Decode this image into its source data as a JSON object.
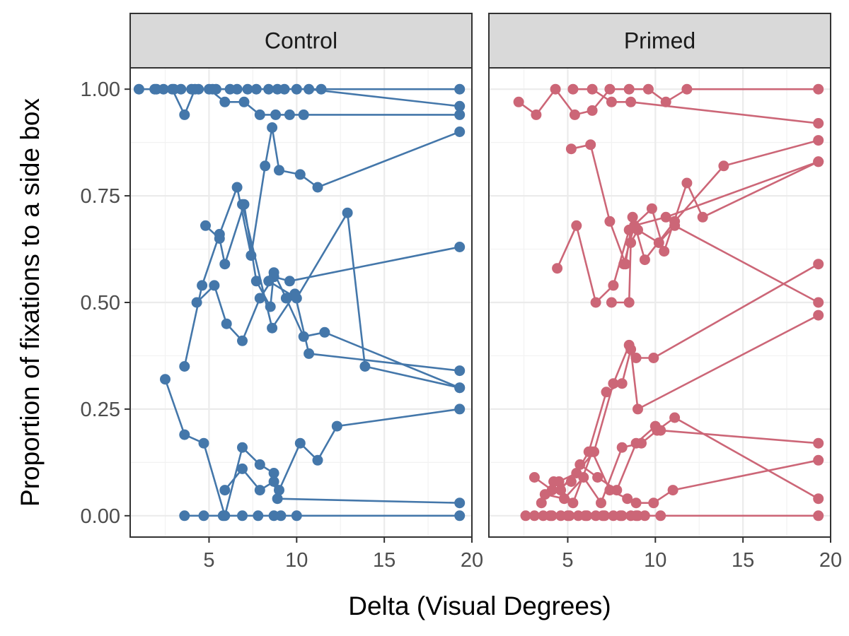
{
  "chart_data": {
    "type": "line",
    "facet_by": "condition",
    "xlabel": "Delta (Visual Degrees)",
    "ylabel": "Proportion of fixations to a side box",
    "xlim": [
      0.5,
      20
    ],
    "ylim": [
      -0.05,
      1.05
    ],
    "x_ticks": [
      5,
      10,
      15,
      20
    ],
    "y_ticks": [
      0,
      0.25,
      0.5,
      0.75,
      1
    ],
    "y_tick_labels": [
      "0.00",
      "0.25",
      "0.50",
      "0.75",
      "1.00"
    ],
    "grid": true,
    "legend": "none",
    "panels": [
      {
        "label": "Control",
        "color": "#4477aa",
        "series": [
          {
            "x": [
              1.0,
              1.9,
              2.4,
              3.4,
              4.4,
              5.4,
              6.6,
              7.7,
              8.9,
              10.0,
              11.4,
              19.3
            ],
            "y": [
              1.0,
              1.0,
              1.0,
              1.0,
              1.0,
              1.0,
              1.0,
              1.0,
              1.0,
              1.0,
              1.0,
              1.0
            ]
          },
          {
            "x": [
              2.0,
              2.9,
              3.6,
              4.2,
              5.0,
              5.9,
              7.0,
              7.9,
              8.8,
              9.6,
              10.4,
              19.3
            ],
            "y": [
              1.0,
              1.0,
              0.94,
              1.0,
              1.0,
              0.97,
              0.97,
              0.94,
              0.94,
              0.94,
              0.94,
              0.94
            ]
          },
          {
            "x": [
              3.0,
              4.0,
              5.2,
              6.2,
              7.2,
              8.4,
              9.3,
              10.7,
              19.3
            ],
            "y": [
              1.0,
              1.0,
              1.0,
              1.0,
              1.0,
              1.0,
              1.0,
              1.0,
              0.96
            ]
          },
          {
            "x": [
              3.6,
              4.6,
              5.6,
              6.6,
              7.4,
              8.2,
              8.6,
              9.0,
              10.2,
              11.2,
              19.3
            ],
            "y": [
              0.35,
              0.54,
              0.66,
              0.77,
              0.61,
              0.82,
              0.91,
              0.81,
              0.8,
              0.77,
              0.9
            ]
          },
          {
            "x": [
              4.3,
              5.3,
              6.0,
              6.9,
              7.9,
              8.7,
              9.6,
              19.3
            ],
            "y": [
              0.5,
              0.54,
              0.45,
              0.41,
              0.51,
              0.56,
              0.55,
              0.63
            ]
          },
          {
            "x": [
              4.8,
              5.6,
              5.9,
              7.0,
              7.7,
              8.5,
              8.7,
              9.4,
              10.4,
              11.6,
              19.3
            ],
            "y": [
              0.68,
              0.65,
              0.59,
              0.73,
              0.55,
              0.49,
              0.57,
              0.51,
              0.42,
              0.43,
              0.3
            ]
          },
          {
            "x": [
              6.9,
              8.6,
              9.9,
              10.7,
              19.3
            ],
            "y": [
              0.73,
              0.44,
              0.52,
              0.38,
              0.34
            ]
          },
          {
            "x": [
              8.4,
              10.0,
              12.9,
              13.9,
              19.3
            ],
            "y": [
              0.55,
              0.51,
              0.71,
              0.35,
              0.3
            ]
          },
          {
            "x": [
              2.5,
              3.6,
              4.7,
              5.9,
              6.9,
              7.9,
              8.7,
              9.0,
              10.2,
              11.2,
              12.3,
              19.3
            ],
            "y": [
              0.32,
              0.19,
              0.17,
              0.0,
              0.16,
              0.12,
              0.1,
              0.06,
              0.17,
              0.13,
              0.21,
              0.25
            ]
          },
          {
            "x": [
              5.9,
              6.9,
              7.9,
              8.7,
              8.9,
              19.3
            ],
            "y": [
              0.06,
              0.11,
              0.06,
              0.08,
              0.04,
              0.03
            ]
          },
          {
            "x": [
              3.6,
              4.7,
              5.8,
              6.9,
              7.8,
              8.7,
              9.1,
              10.0,
              19.3
            ],
            "y": [
              0.0,
              0.0,
              0.0,
              0.0,
              0.0,
              0.0,
              0.0,
              0.0,
              0.0
            ]
          }
        ]
      },
      {
        "label": "Primed",
        "color": "#cc6677",
        "series": [
          {
            "x": [
              2.2,
              3.2,
              4.3,
              5.4,
              6.4,
              7.4,
              8.5,
              9.6,
              10.6,
              11.8,
              19.3
            ],
            "y": [
              0.97,
              0.94,
              1.0,
              0.94,
              0.95,
              1.0,
              1.0,
              1.0,
              0.97,
              1.0,
              1.0
            ]
          },
          {
            "x": [
              5.3,
              6.4,
              7.5,
              8.6,
              19.3
            ],
            "y": [
              1.0,
              1.0,
              0.97,
              0.97,
              0.92
            ]
          },
          {
            "x": [
              5.2,
              6.3,
              7.4,
              8.3,
              8.7,
              9.4,
              11.1,
              13.9,
              19.3
            ],
            "y": [
              0.86,
              0.87,
              0.69,
              0.59,
              0.7,
              0.6,
              0.69,
              0.82,
              0.88
            ]
          },
          {
            "x": [
              4.4,
              5.5,
              6.6,
              7.6,
              8.5,
              9.8,
              10.5,
              11.8,
              12.7,
              19.3
            ],
            "y": [
              0.58,
              0.68,
              0.5,
              0.54,
              0.67,
              0.72,
              0.62,
              0.78,
              0.7,
              0.83
            ]
          },
          {
            "x": [
              7.5,
              8.5,
              8.6,
              9.0,
              10.2,
              11.1,
              19.3
            ],
            "y": [
              0.5,
              0.5,
              0.64,
              0.67,
              0.64,
              0.68,
              0.5
            ]
          },
          {
            "x": [
              8.2,
              8.8,
              10.6,
              19.3
            ],
            "y": [
              0.59,
              0.68,
              0.7,
              0.83
            ]
          },
          {
            "x": [
              3.5,
              4.5,
              5.5,
              6.5,
              7.6,
              8.5,
              8.9,
              9.9,
              19.3
            ],
            "y": [
              0.03,
              0.08,
              0.1,
              0.15,
              0.31,
              0.4,
              0.37,
              0.37,
              0.59
            ]
          },
          {
            "x": [
              3.1,
              4.1,
              5.2,
              6.2,
              7.2,
              8.1,
              8.6,
              9.0,
              19.3
            ],
            "y": [
              0.09,
              0.06,
              0.08,
              0.15,
              0.29,
              0.31,
              0.39,
              0.25,
              0.47
            ]
          },
          {
            "x": [
              4.6,
              5.7,
              6.7,
              7.8,
              8.9,
              10.0,
              10.3,
              19.3
            ],
            "y": [
              0.06,
              0.12,
              0.09,
              0.06,
              0.17,
              0.21,
              0.2,
              0.17
            ]
          },
          {
            "x": [
              3.7,
              4.8,
              5.9,
              6.9,
              8.1,
              9.2,
              10.1,
              11.1,
              19.3
            ],
            "y": [
              0.05,
              0.04,
              0.09,
              0.03,
              0.16,
              0.17,
              0.2,
              0.23,
              0.04
            ]
          },
          {
            "x": [
              4.2,
              5.3,
              6.4,
              7.4,
              8.4,
              8.9,
              9.9,
              11.0,
              19.3
            ],
            "y": [
              0.08,
              0.03,
              0.15,
              0.06,
              0.04,
              0.03,
              0.03,
              0.06,
              0.13
            ]
          },
          {
            "x": [
              2.6,
              3.6,
              4.6,
              5.6,
              6.6,
              7.6,
              8.6,
              9.4,
              10.3,
              19.3
            ],
            "y": [
              0.0,
              0.0,
              0.0,
              0.0,
              0.0,
              0.0,
              0.0,
              0.0,
              0.0,
              0.0
            ]
          },
          {
            "x": [
              3.1,
              4.1,
              5.1,
              6.1,
              7.1,
              8.1,
              9.0
            ],
            "y": [
              0.0,
              0.0,
              0.0,
              0.0,
              0.0,
              0.0,
              0.0
            ]
          },
          {
            "x": [
              4.0,
              5.0,
              6.0,
              7.0,
              8.0,
              8.9
            ],
            "y": [
              0.0,
              0.0,
              0.0,
              0.0,
              0.0,
              0.0
            ]
          }
        ]
      }
    ]
  }
}
